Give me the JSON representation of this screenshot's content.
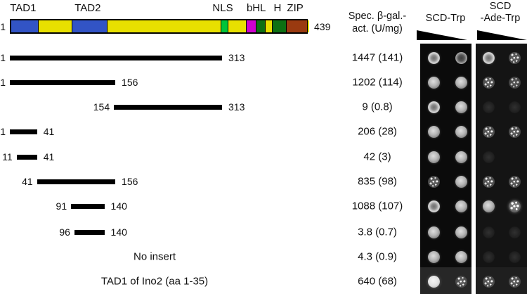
{
  "figure": {
    "schematic": {
      "start_label": "1",
      "end_label": "439",
      "aa_min": 1,
      "aa_max": 439,
      "segments": [
        {
          "name": "TAD1",
          "label": "TAD1",
          "color": "#3254c5",
          "from": 1,
          "to": 40
        },
        {
          "name": "linker",
          "label": "",
          "color": "#e8e000",
          "from": 40,
          "to": 90
        },
        {
          "name": "TAD2",
          "label": "TAD2",
          "color": "#3254c5",
          "from": 90,
          "to": 141
        },
        {
          "name": "linker",
          "label": "",
          "color": "#e8e000",
          "from": 141,
          "to": 309
        },
        {
          "name": "NLS",
          "label": "NLS",
          "color": "#00c53a",
          "from": 309,
          "to": 319
        },
        {
          "name": "linker",
          "label": "",
          "color": "#e8e000",
          "from": 319,
          "to": 346
        },
        {
          "name": "basic",
          "label": "b",
          "color": "#cf00cf",
          "from": 346,
          "to": 361
        },
        {
          "name": "helix1",
          "label": "HL",
          "color": "#0d7013",
          "from": 361,
          "to": 374
        },
        {
          "name": "loop",
          "label": "",
          "color": "#e8e000",
          "from": 374,
          "to": 384
        },
        {
          "name": "helix2",
          "label": "H",
          "color": "#0d7013",
          "from": 384,
          "to": 405
        },
        {
          "name": "ZIP",
          "label": "ZIP",
          "color": "#9a3a10",
          "from": 405,
          "to": 436
        },
        {
          "name": "cterm",
          "label": "",
          "color": "#e8e000",
          "from": 436,
          "to": 439
        }
      ]
    },
    "columns": {
      "activity_header_line1": "Spec. β-gal.-",
      "activity_header_line2": "act. (U/mg)",
      "panel_trp_title": "SCD-Trp",
      "panel_ade_title_line1": "SCD",
      "panel_ade_title_line2": "-Ade-Trp"
    },
    "rows": [
      {
        "start": "1",
        "end": "313",
        "aa_start": 1,
        "aa_end": 313,
        "activity": "1447 (141)",
        "trp": [
          "ring",
          "dim-ring"
        ],
        "ade": [
          "ring",
          "speckle"
        ]
      },
      {
        "start": "1",
        "end": "156",
        "aa_start": 1,
        "aa_end": 156,
        "activity": "1202 (114)",
        "trp": [
          "solid",
          "solid"
        ],
        "ade": [
          "speckle",
          "speckle-dim"
        ]
      },
      {
        "start": "154",
        "end": "313",
        "aa_start": 154,
        "aa_end": 313,
        "activity": "9 (0.8)",
        "trp": [
          "ring",
          "solid"
        ],
        "ade": [
          "faint",
          "faint"
        ]
      },
      {
        "start": "1",
        "end": "41",
        "aa_start": 1,
        "aa_end": 41,
        "activity": "206 (28)",
        "trp": [
          "solid",
          "solid"
        ],
        "ade": [
          "speckle",
          "speckle"
        ]
      },
      {
        "start": "11",
        "end": "41",
        "aa_start": 11,
        "aa_end": 41,
        "activity": "42 (3)",
        "trp": [
          "solid",
          "solid"
        ],
        "ade": [
          "faint",
          "none"
        ]
      },
      {
        "start": "41",
        "end": "156",
        "aa_start": 41,
        "aa_end": 156,
        "activity": "835 (98)",
        "trp": [
          "speckle",
          "solid"
        ],
        "ade": [
          "speckle",
          "speckle"
        ]
      },
      {
        "start": "91",
        "end": "140",
        "aa_start": 91,
        "aa_end": 140,
        "activity": "1088 (107)",
        "trp": [
          "ring",
          "solid"
        ],
        "ade": [
          "solid",
          "speckle-bright"
        ]
      },
      {
        "start": "96",
        "end": "140",
        "aa_start": 96,
        "aa_end": 140,
        "activity": "3.8 (0.7)",
        "trp": [
          "solid",
          "solid"
        ],
        "ade": [
          "faint",
          "faint"
        ]
      },
      {
        "text": "No insert",
        "activity": "4.3 (0.9)",
        "trp": [
          "solid",
          "solid"
        ],
        "ade": [
          "faint",
          "faint"
        ]
      },
      {
        "text": "TAD1 of Ino2 (aa 1-35)",
        "activity": "640 (68)",
        "trp": [
          "bright",
          "speckle"
        ],
        "ade": [
          "speckle",
          "speckle"
        ]
      }
    ],
    "panel_colors": {
      "trp_bg": "#0b0b0b",
      "trp_strip_bg": "#272727",
      "ade_bg": "#141414",
      "ade_strip_bg": "#1f1f1f"
    }
  }
}
